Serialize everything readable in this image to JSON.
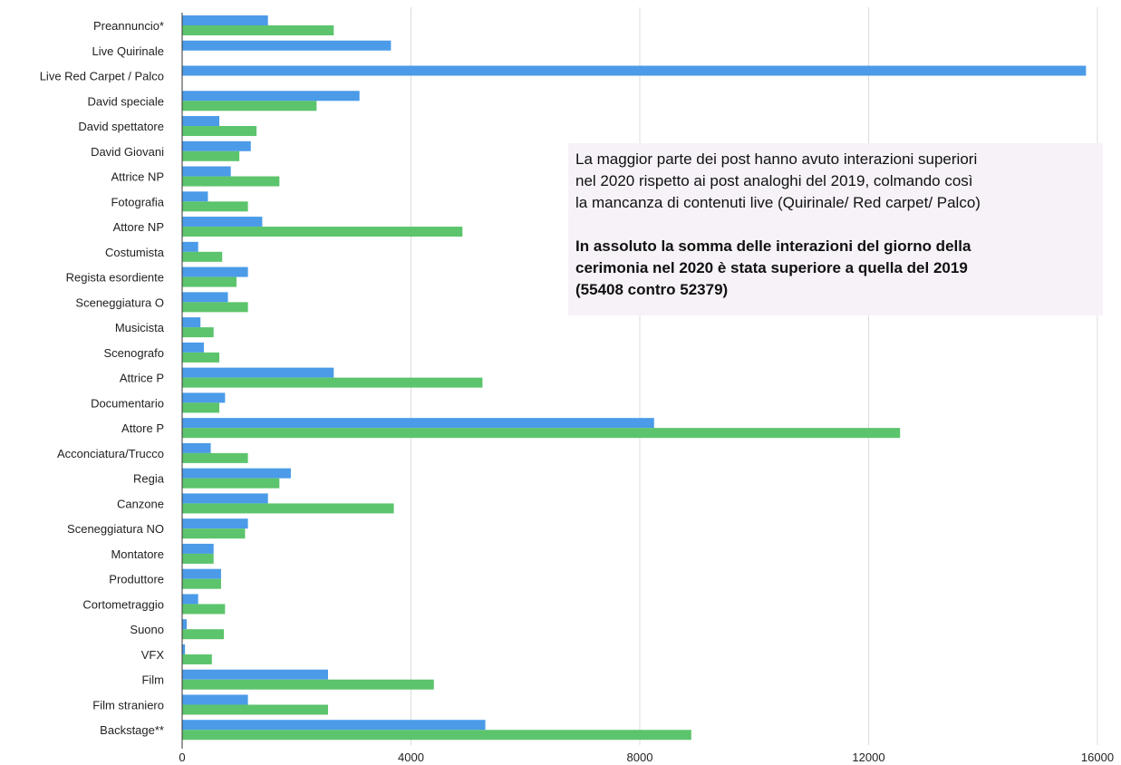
{
  "colors": {
    "series2020": "#4b9be8",
    "series2019": "#5cc46c",
    "grid": "#dcdcdc",
    "axis": "#333333",
    "note_bg": "#f6f2f8"
  },
  "note": {
    "line1": "La maggior parte dei post hanno avuto interazioni superiori",
    "line2": "nel 2020 rispetto ai post analoghi del 2019, colmando così",
    "line3": "la mancanza di contenuti live (Quirinale/ Red carpet/ Palco)",
    "bold1": "In assoluto la somma delle interazioni del giorno della",
    "bold2": "cerimonia nel 2020 è stata superiore a quella del 2019",
    "bold3": "(55408 contro 52379)"
  },
  "chart_data": {
    "type": "bar",
    "orientation": "horizontal",
    "title": "",
    "xlabel": "",
    "ylabel": "",
    "xlim": [
      0,
      16000
    ],
    "xticks": [
      0,
      4000,
      8000,
      12000,
      16000
    ],
    "grid": true,
    "categories": [
      "Preannuncio*",
      "Live Quirinale",
      "Live Red Carpet / Palco",
      "David speciale",
      "David spettatore",
      "David Giovani",
      "Attrice NP",
      "Fotografia",
      "Attore NP",
      "Costumista",
      "Regista esordiente",
      "Sceneggiatura O",
      "Musicista",
      "Scenografo",
      "Attrice P",
      "Documentario",
      "Attore P",
      "Acconciatura/Trucco",
      "Regia",
      "Canzone",
      "Sceneggiatura NO",
      "Montatore",
      "Produttore",
      "Cortometraggio",
      "Suono",
      "VFX",
      "Film",
      "Film straniero",
      "Backstage**"
    ],
    "series": [
      {
        "color": "#4b9be8",
        "values": [
          1500,
          3650,
          15800,
          3100,
          650,
          1200,
          850,
          450,
          1400,
          280,
          1150,
          800,
          320,
          380,
          2650,
          750,
          8250,
          500,
          1900,
          1500,
          1150,
          550,
          680,
          280,
          80,
          50,
          2550,
          1150,
          5300
        ]
      },
      {
        "color": "#5cc46c",
        "values": [
          2650,
          0,
          0,
          2350,
          1300,
          1000,
          1700,
          1150,
          4900,
          700,
          950,
          1150,
          550,
          650,
          5250,
          650,
          12550,
          1150,
          1700,
          3700,
          1100,
          550,
          680,
          750,
          730,
          520,
          4400,
          2550,
          8900
        ]
      }
    ]
  }
}
